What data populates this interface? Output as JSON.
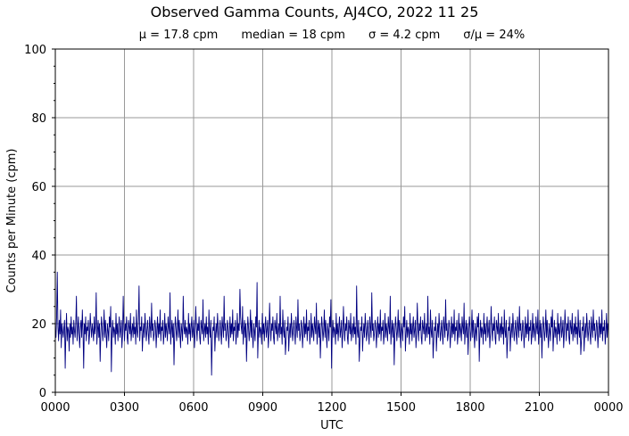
{
  "chart_data": {
    "type": "line",
    "title": "Observed Gamma Counts, AJ4CO, 2022 11 25",
    "stats": {
      "mean": "μ = 17.8 cpm",
      "median": "median = 18 cpm",
      "sigma": "σ = 4.2 cpm",
      "ratio": "σ/μ = 24%"
    },
    "xlabel": "UTC",
    "ylabel": "Counts per Minute (cpm)",
    "xlim": [
      0,
      1440
    ],
    "ylim": [
      0,
      100
    ],
    "grid": true,
    "x_ticks": [
      {
        "minute": 0,
        "label": "0000"
      },
      {
        "minute": 180,
        "label": "0300"
      },
      {
        "minute": 360,
        "label": "0600"
      },
      {
        "minute": 540,
        "label": "0900"
      },
      {
        "minute": 720,
        "label": "1200"
      },
      {
        "minute": 900,
        "label": "1500"
      },
      {
        "minute": 1080,
        "label": "1800"
      },
      {
        "minute": 1260,
        "label": "2100"
      },
      {
        "minute": 1440,
        "label": "0000"
      }
    ],
    "y_ticks": [
      0,
      20,
      40,
      60,
      80,
      100
    ],
    "series": [
      {
        "color": "#000080",
        "values_note_summary": "approx. 1 sample per minute, fluctuating ~6–35 cpm around 18",
        "values": [
          18,
          16,
          22,
          35,
          19,
          15,
          21,
          17,
          24,
          13,
          20,
          18,
          16,
          19,
          21,
          7,
          17,
          23,
          15,
          19,
          18,
          12,
          20,
          16,
          22,
          17,
          19,
          14,
          21,
          18,
          16,
          20,
          28,
          15,
          18,
          22,
          17,
          13,
          19,
          21,
          16,
          24,
          18,
          7,
          20,
          17,
          22,
          15,
          19,
          18,
          21,
          14,
          17,
          23,
          19,
          16,
          20,
          18,
          15,
          22,
          17,
          19,
          29,
          14,
          18,
          21,
          16,
          20,
          9,
          17,
          22,
          19,
          15,
          18,
          24,
          16,
          21,
          17,
          13,
          20,
          18,
          15,
          22,
          19,
          25,
          6,
          17,
          21,
          16,
          19,
          18,
          14,
          23,
          17,
          20,
          15,
          19,
          22,
          16,
          18,
          21,
          13,
          17,
          28,
          19,
          15,
          20,
          18,
          22,
          16,
          14,
          21,
          19,
          17,
          23,
          15,
          18,
          20,
          16,
          22,
          17,
          19,
          14,
          24,
          18,
          16,
          21,
          31,
          15,
          19,
          18,
          22,
          12,
          17,
          20,
          16,
          23,
          19,
          15,
          18,
          21,
          17,
          14,
          22,
          19,
          16,
          26,
          18,
          20,
          15,
          17,
          21,
          19,
          13,
          18,
          22,
          16,
          20,
          17,
          24,
          15,
          19,
          18,
          21,
          14,
          17,
          23,
          16,
          20,
          18,
          15,
          22,
          19,
          17,
          29,
          14,
          18,
          21,
          16,
          20,
          8,
          17,
          22,
          19,
          15,
          18,
          24,
          16,
          21,
          17,
          13,
          20,
          18,
          15,
          28,
          19,
          17,
          21,
          16,
          19,
          18,
          14,
          23,
          17,
          20,
          15,
          19,
          22,
          16,
          18,
          21,
          13,
          17,
          25,
          19,
          15,
          20,
          18,
          22,
          16,
          14,
          21,
          19,
          17,
          27,
          15,
          18,
          20,
          16,
          22,
          17,
          19,
          14,
          24,
          18,
          16,
          21,
          5,
          15,
          19,
          18,
          22,
          12,
          17,
          20,
          16,
          23,
          19,
          15,
          18,
          21,
          17,
          14,
          22,
          19,
          16,
          28,
          18,
          20,
          15,
          17,
          21,
          19,
          13,
          18,
          22,
          16,
          20,
          17,
          24,
          15,
          19,
          18,
          21,
          14,
          17,
          23,
          16,
          20,
          18,
          30,
          22,
          19,
          17,
          25,
          14,
          18,
          21,
          16,
          20,
          9,
          17,
          22,
          19,
          15,
          18,
          24,
          16,
          21,
          17,
          13,
          20,
          18,
          15,
          22,
          19,
          32,
          10,
          17,
          21,
          16,
          19,
          18,
          14,
          23,
          17,
          20,
          15,
          19,
          22,
          16,
          18,
          21,
          13,
          17,
          26,
          19,
          15,
          20,
          18,
          22,
          16,
          14,
          21,
          19,
          17,
          23,
          15,
          18,
          20,
          16,
          28,
          17,
          19,
          14,
          24,
          18,
          16,
          21,
          11,
          15,
          19,
          18,
          22,
          12,
          17,
          20,
          16,
          23,
          19,
          15,
          18,
          21,
          17,
          14,
          22,
          19,
          16,
          27,
          18,
          20,
          15,
          17,
          21,
          19,
          13,
          18,
          22,
          16,
          20,
          17,
          24,
          15,
          19,
          18,
          21,
          14,
          17,
          23,
          16,
          20,
          18,
          15,
          22,
          19,
          17,
          26,
          14,
          18,
          21,
          16,
          20,
          10,
          17,
          22,
          19,
          15,
          18,
          24,
          16,
          21,
          17,
          13,
          20,
          18,
          15,
          22,
          19,
          27,
          7,
          17,
          21,
          16,
          19,
          18,
          14,
          23,
          17,
          20,
          15,
          19,
          22,
          16,
          18,
          21,
          13,
          17,
          25,
          19,
          15,
          20,
          18,
          22,
          16,
          14,
          21,
          19,
          17,
          23,
          15,
          18,
          20,
          16,
          22,
          17,
          19,
          14,
          31,
          18,
          16,
          21,
          9,
          15,
          19,
          18,
          22,
          12,
          17,
          20,
          16,
          23,
          19,
          15,
          18,
          21,
          17,
          14,
          22,
          19,
          16,
          29,
          18,
          20,
          15,
          17,
          21,
          19,
          13,
          18,
          22,
          16,
          20,
          17,
          24,
          15,
          19,
          18,
          21,
          14,
          17,
          23,
          16,
          20,
          18,
          15,
          22,
          19,
          17,
          28,
          14,
          18,
          21,
          16,
          20,
          8,
          17,
          22,
          19,
          15,
          18,
          24,
          16,
          21,
          17,
          13,
          20,
          18,
          15,
          22,
          19,
          25,
          12,
          17,
          21,
          16,
          19,
          18,
          14,
          23,
          17,
          20,
          15,
          19,
          22,
          16,
          18,
          21,
          13,
          17,
          26,
          19,
          15,
          20,
          18,
          22,
          16,
          14,
          21,
          19,
          17,
          23,
          15,
          18,
          20,
          16,
          28,
          17,
          19,
          14,
          24,
          18,
          16,
          21,
          10,
          15,
          19,
          18,
          22,
          12,
          17,
          20,
          16,
          23,
          19,
          15,
          18,
          21,
          17,
          14,
          22,
          19,
          16,
          27,
          18,
          20,
          15,
          17,
          21,
          19,
          13,
          18,
          22,
          16,
          20,
          17,
          24,
          15,
          19,
          18,
          21,
          14,
          17,
          23,
          16,
          20,
          18,
          15,
          22,
          19,
          17,
          26,
          14,
          18,
          21,
          16,
          20,
          11,
          17,
          22,
          19,
          15,
          18,
          24,
          16,
          21,
          17,
          13,
          20,
          18,
          15,
          22,
          19,
          23,
          9,
          17,
          21,
          16,
          19,
          18,
          14,
          23,
          17,
          20,
          15,
          19,
          22,
          16,
          18,
          21,
          13,
          17,
          25,
          19,
          15,
          20,
          18,
          22,
          16,
          14,
          21,
          19,
          17,
          23,
          15,
          18,
          20,
          16,
          22,
          17,
          19,
          14,
          24,
          18,
          16,
          21,
          10,
          15,
          19,
          18,
          22,
          12,
          17,
          20,
          16,
          23,
          19,
          15,
          18,
          21,
          17,
          14,
          22,
          19,
          16,
          25,
          18,
          20,
          15,
          17,
          21,
          19,
          13,
          18,
          22,
          16,
          20,
          17,
          24,
          15,
          19,
          18,
          21,
          14,
          17,
          23,
          16,
          20,
          18,
          15,
          22,
          19,
          17,
          24,
          14,
          18,
          21,
          16,
          20,
          10,
          17,
          22,
          19,
          15,
          18,
          24,
          16,
          21,
          17,
          13,
          20,
          18,
          15,
          22,
          19,
          24,
          12,
          17,
          21,
          16,
          19,
          18,
          14,
          23,
          17,
          20,
          15,
          19,
          22,
          16,
          18,
          21,
          13,
          17,
          24,
          19,
          15,
          20,
          18,
          22,
          16,
          14,
          21,
          19,
          17,
          23,
          15,
          18,
          20,
          16,
          22,
          17,
          19,
          14,
          24,
          18,
          16,
          21,
          11,
          15,
          19,
          18,
          22,
          12,
          17,
          20,
          16,
          23,
          19,
          15,
          18,
          21,
          17,
          14,
          22,
          19,
          16,
          24,
          18,
          20,
          15,
          17,
          21,
          19,
          13,
          18,
          22,
          16,
          20,
          17,
          24,
          15,
          19,
          18,
          21,
          14,
          17,
          23,
          16,
          20,
          18
        ]
      }
    ]
  }
}
